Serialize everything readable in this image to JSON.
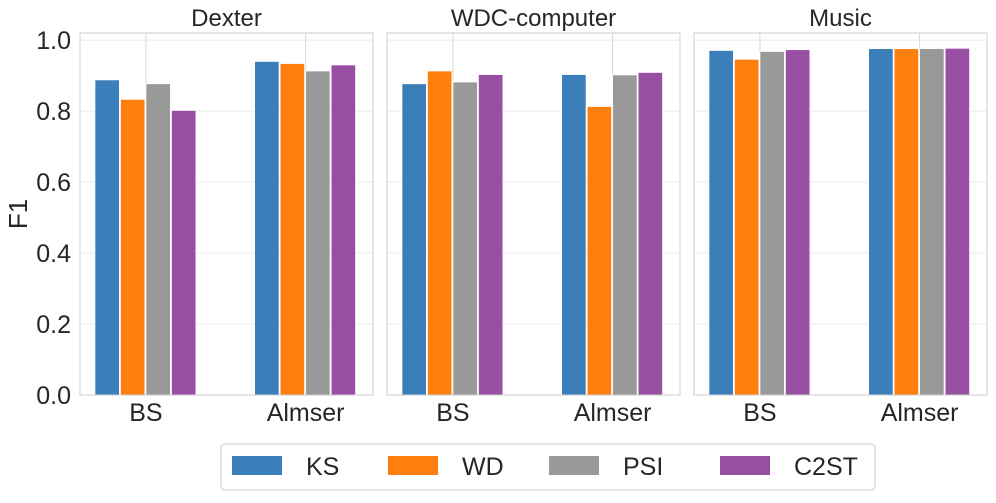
{
  "chart_data": {
    "type": "bar",
    "ylabel": "F1",
    "ylim": [
      0,
      1.02
    ],
    "yticks": [
      0.0,
      0.2,
      0.4,
      0.6,
      0.8,
      1.0
    ],
    "ytick_labels": [
      "0.0",
      "0.2",
      "0.4",
      "0.6",
      "0.8",
      "1.0"
    ],
    "categories": [
      "BS",
      "Almser"
    ],
    "legend_placement": "bottom-center",
    "grid": true,
    "series_colors": {
      "KS": "#3a7fba",
      "WD": "#ff7f0e",
      "PSI": "#999999",
      "C2ST": "#984ea3"
    },
    "panels": [
      {
        "title": "Dexter",
        "series": [
          {
            "name": "KS",
            "values": [
              0.888,
              0.94
            ]
          },
          {
            "name": "WD",
            "values": [
              0.833,
              0.934
            ]
          },
          {
            "name": "PSI",
            "values": [
              0.877,
              0.913
            ]
          },
          {
            "name": "C2ST",
            "values": [
              0.802,
              0.93
            ]
          }
        ]
      },
      {
        "title": "WDC-computer",
        "series": [
          {
            "name": "KS",
            "values": [
              0.877,
              0.903
            ]
          },
          {
            "name": "WD",
            "values": [
              0.913,
              0.813
            ]
          },
          {
            "name": "PSI",
            "values": [
              0.882,
              0.902
            ]
          },
          {
            "name": "C2ST",
            "values": [
              0.903,
              0.909
            ]
          }
        ]
      },
      {
        "title": "Music",
        "series": [
          {
            "name": "KS",
            "values": [
              0.971,
              0.976
            ]
          },
          {
            "name": "WD",
            "values": [
              0.946,
              0.976
            ]
          },
          {
            "name": "PSI",
            "values": [
              0.968,
              0.976
            ]
          },
          {
            "name": "C2ST",
            "values": [
              0.973,
              0.977
            ]
          }
        ]
      }
    ]
  }
}
